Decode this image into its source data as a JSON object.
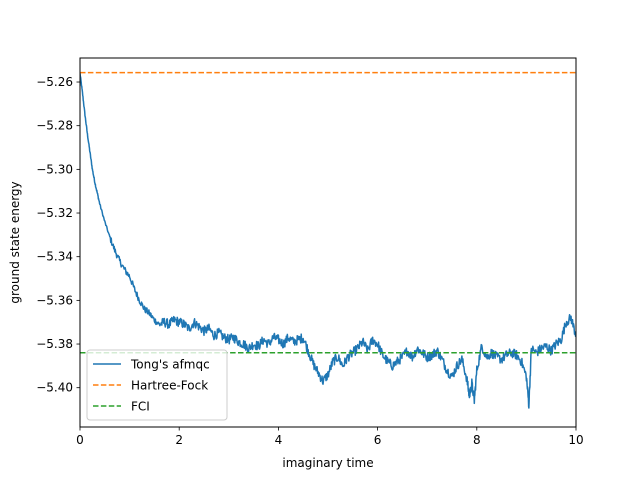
{
  "chart_data": {
    "type": "line",
    "title": "",
    "xlabel": "imaginary time",
    "ylabel": "ground state energy",
    "xlim": [
      0,
      10
    ],
    "ylim": [
      -5.418,
      -5.249
    ],
    "xticks": [
      0,
      2,
      4,
      6,
      8,
      10
    ],
    "xtick_labels": [
      "0",
      "2",
      "4",
      "6",
      "8",
      "10"
    ],
    "yticks": [
      -5.4,
      -5.38,
      -5.36,
      -5.34,
      -5.32,
      -5.3,
      -5.28,
      -5.26
    ],
    "ytick_labels": [
      "−5.40",
      "−5.38",
      "−5.36",
      "−5.34",
      "−5.32",
      "−5.30",
      "−5.28",
      "−5.26"
    ],
    "grid": false,
    "legend_position": "lower-left",
    "series": [
      {
        "name": "Tong's afmqc",
        "style": "solid",
        "color": "#1f77b4",
        "x": [
          0,
          0.05,
          0.1,
          0.15,
          0.2,
          0.25,
          0.3,
          0.35,
          0.4,
          0.5,
          0.6,
          0.7,
          0.8,
          0.9,
          1.0,
          1.1,
          1.2,
          1.3,
          1.4,
          1.5,
          1.6,
          1.7,
          1.8,
          1.9,
          2.0,
          2.1,
          2.2,
          2.3,
          2.4,
          2.5,
          2.6,
          2.7,
          2.8,
          2.9,
          3.0,
          3.1,
          3.2,
          3.3,
          3.4,
          3.5,
          3.6,
          3.7,
          3.8,
          3.9,
          4.0,
          4.1,
          4.2,
          4.3,
          4.4,
          4.5,
          4.6,
          4.7,
          4.8,
          4.9,
          5.0,
          5.1,
          5.2,
          5.3,
          5.4,
          5.5,
          5.6,
          5.7,
          5.8,
          5.9,
          6.0,
          6.1,
          6.2,
          6.3,
          6.4,
          6.5,
          6.6,
          6.7,
          6.8,
          6.9,
          7.0,
          7.1,
          7.2,
          7.3,
          7.4,
          7.5,
          7.6,
          7.7,
          7.8,
          7.85,
          7.9,
          7.95,
          8.0,
          8.1,
          8.2,
          8.3,
          8.4,
          8.5,
          8.6,
          8.7,
          8.8,
          8.9,
          9.0,
          9.05,
          9.1,
          9.2,
          9.3,
          9.4,
          9.5,
          9.6,
          9.7,
          9.8,
          9.9,
          10.0
        ],
        "y": [
          -5.256,
          -5.265,
          -5.275,
          -5.284,
          -5.292,
          -5.3,
          -5.306,
          -5.311,
          -5.316,
          -5.324,
          -5.331,
          -5.337,
          -5.342,
          -5.346,
          -5.349,
          -5.355,
          -5.36,
          -5.364,
          -5.366,
          -5.369,
          -5.371,
          -5.37,
          -5.371,
          -5.369,
          -5.37,
          -5.371,
          -5.373,
          -5.37,
          -5.372,
          -5.374,
          -5.373,
          -5.376,
          -5.375,
          -5.377,
          -5.378,
          -5.377,
          -5.379,
          -5.38,
          -5.382,
          -5.38,
          -5.381,
          -5.378,
          -5.38,
          -5.377,
          -5.378,
          -5.38,
          -5.377,
          -5.379,
          -5.378,
          -5.377,
          -5.383,
          -5.389,
          -5.393,
          -5.397,
          -5.394,
          -5.388,
          -5.386,
          -5.39,
          -5.386,
          -5.384,
          -5.382,
          -5.379,
          -5.383,
          -5.378,
          -5.38,
          -5.385,
          -5.388,
          -5.39,
          -5.388,
          -5.386,
          -5.383,
          -5.386,
          -5.382,
          -5.384,
          -5.386,
          -5.385,
          -5.383,
          -5.387,
          -5.392,
          -5.395,
          -5.39,
          -5.387,
          -5.396,
          -5.404,
          -5.398,
          -5.406,
          -5.392,
          -5.381,
          -5.386,
          -5.384,
          -5.386,
          -5.387,
          -5.385,
          -5.384,
          -5.385,
          -5.388,
          -5.395,
          -5.408,
          -5.382,
          -5.384,
          -5.382,
          -5.381,
          -5.383,
          -5.38,
          -5.378,
          -5.37,
          -5.368,
          -5.376
        ]
      },
      {
        "name": "Hartree-Fock",
        "style": "dashed",
        "color": "#ff7f0e",
        "x": [
          0,
          10
        ],
        "y": [
          -5.2557,
          -5.2557
        ]
      },
      {
        "name": "FCI",
        "style": "dashed",
        "color": "#2ca02c",
        "x": [
          0,
          10
        ],
        "y": [
          -5.384,
          -5.384
        ]
      }
    ]
  }
}
